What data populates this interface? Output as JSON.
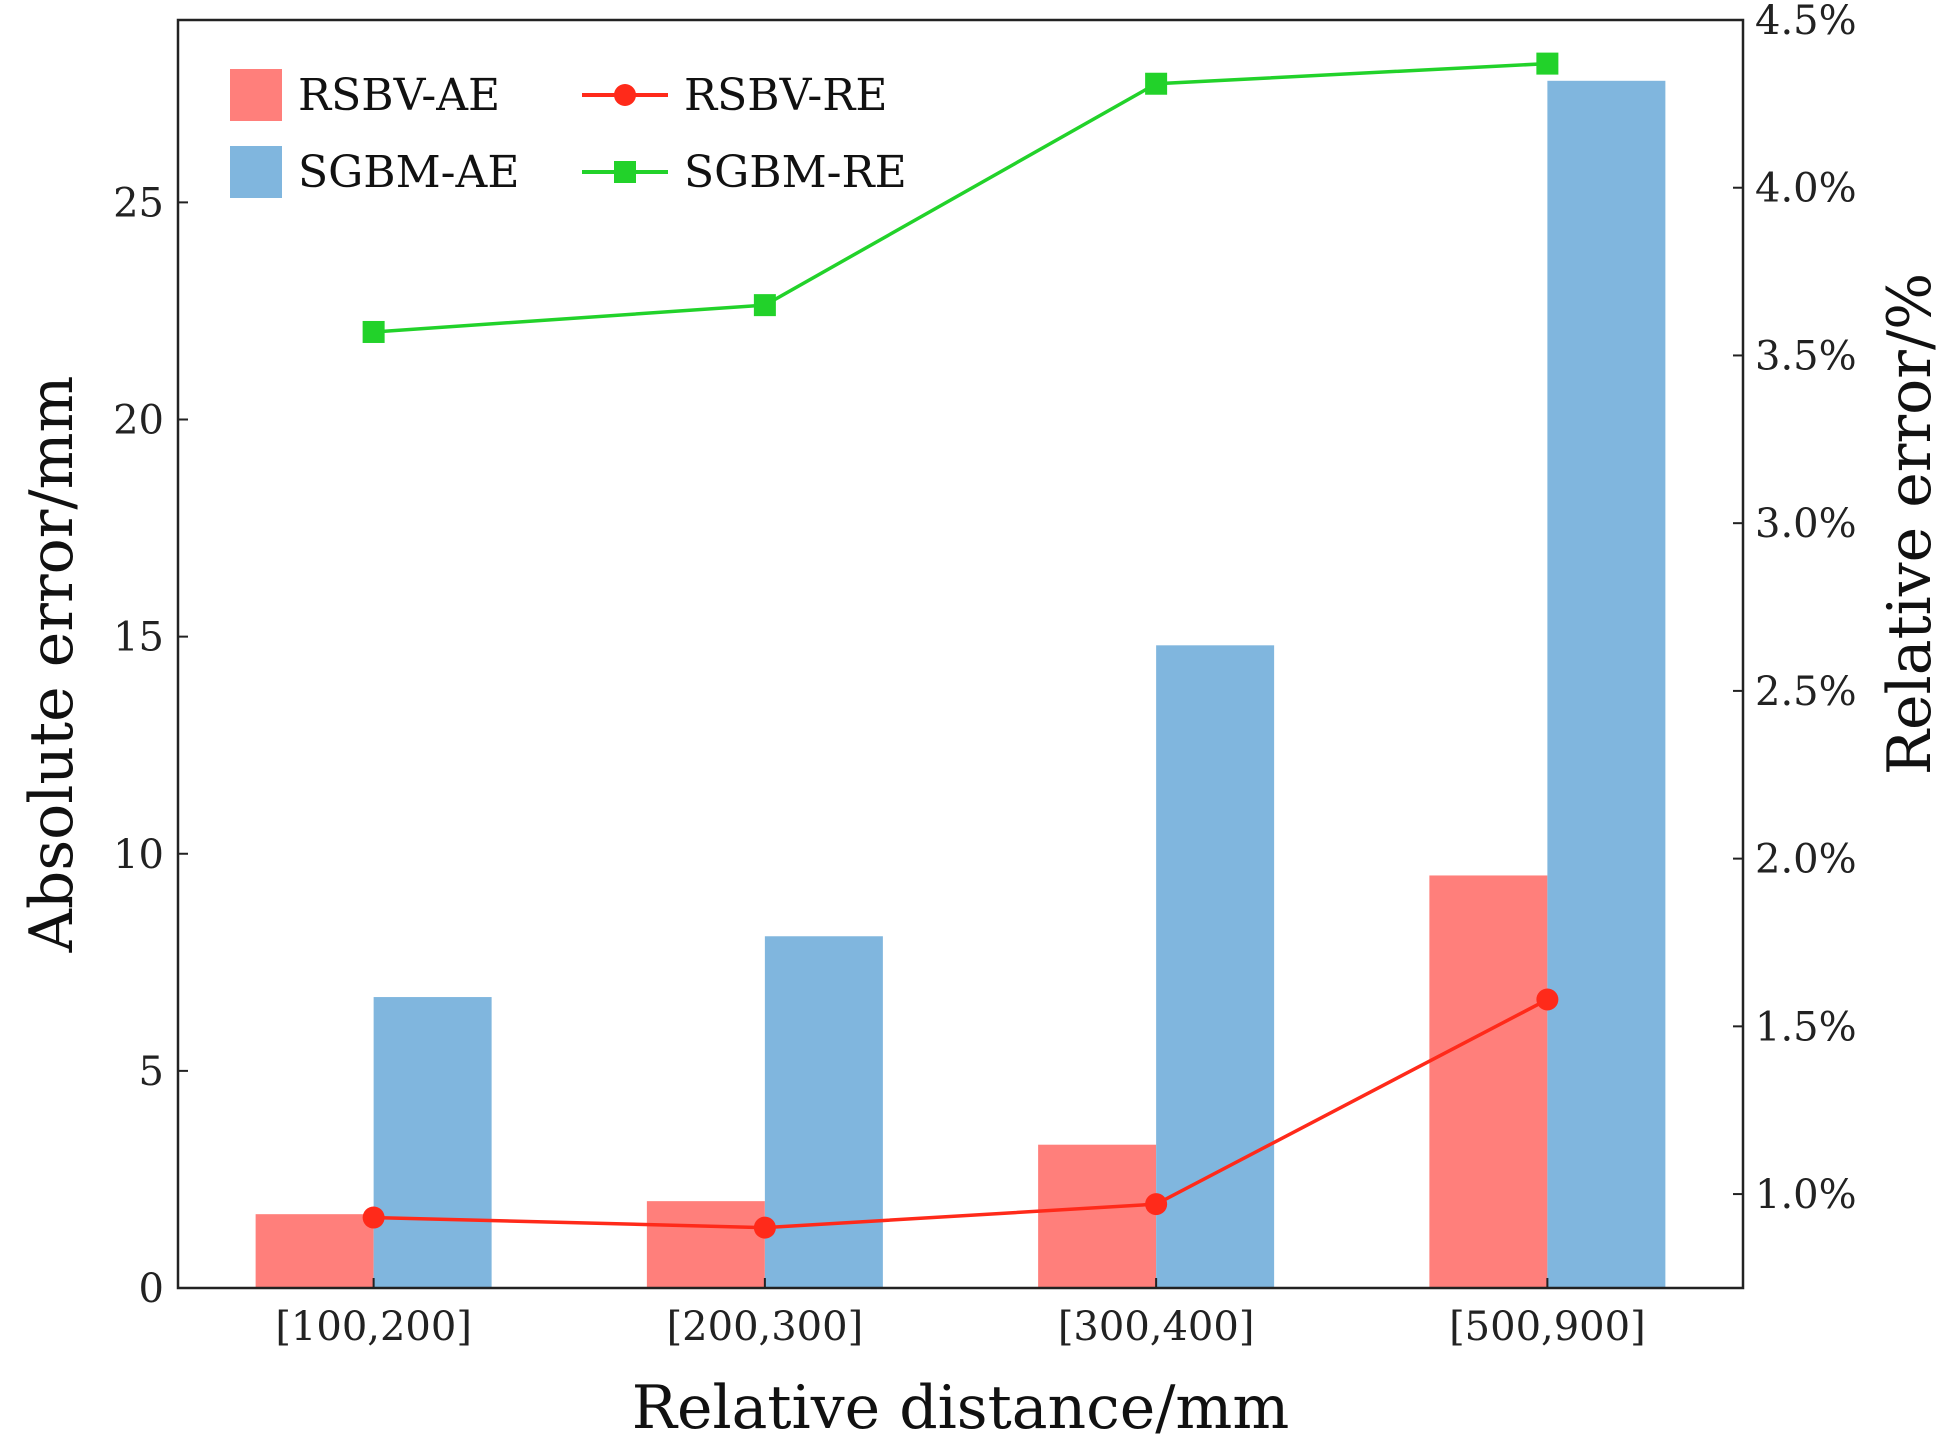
{
  "chart_data": {
    "type": "bar",
    "title": "",
    "categories": [
      "[100,200]",
      "[200,300]",
      "[300,400]",
      "[500,900]"
    ],
    "xlabel": "Relative distance/mm",
    "ylabel": "Absolute error/mm",
    "y2label": "Relative error/%",
    "ylim": [
      0,
      29.2
    ],
    "y2lim": [
      0.72,
      4.5
    ],
    "yticks": [
      0,
      5,
      10,
      15,
      20,
      25
    ],
    "ytick_labels": [
      "0",
      "5",
      "10",
      "15",
      "20",
      "25"
    ],
    "y2ticks": [
      1.0,
      1.5,
      2.0,
      2.5,
      3.0,
      3.5,
      4.0,
      4.5
    ],
    "y2tick_labels": [
      "1.0%",
      "1.5%",
      "2.0%",
      "2.5%",
      "3.0%",
      "3.5%",
      "4.0%",
      "4.5%"
    ],
    "grid": false,
    "legend_position": "top-left",
    "series": [
      {
        "name": "RSBV-AE",
        "kind": "bar",
        "axis": "left",
        "color": "#FF7F7B",
        "values": [
          1.7,
          2.0,
          3.3,
          9.5
        ]
      },
      {
        "name": "SGBM-AE",
        "kind": "bar",
        "axis": "left",
        "color": "#80B6DE",
        "values": [
          6.7,
          8.1,
          14.8,
          27.8
        ]
      },
      {
        "name": "RSBV-RE",
        "kind": "line",
        "marker": "circle",
        "axis": "right",
        "color": "#FF2A1A",
        "values": [
          0.93,
          0.9,
          0.97,
          1.58
        ]
      },
      {
        "name": "SGBM-RE",
        "kind": "line",
        "marker": "square",
        "axis": "right",
        "color": "#22D22A",
        "values": [
          3.57,
          3.65,
          4.31,
          4.37
        ]
      }
    ]
  }
}
